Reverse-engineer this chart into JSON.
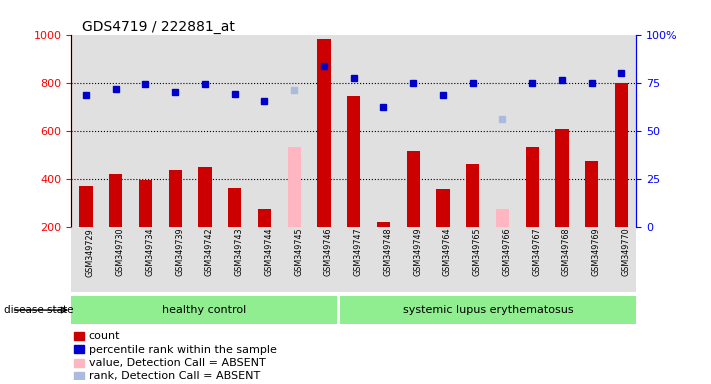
{
  "title": "GDS4719 / 222881_at",
  "samples": [
    "GSM349729",
    "GSM349730",
    "GSM349734",
    "GSM349739",
    "GSM349742",
    "GSM349743",
    "GSM349744",
    "GSM349745",
    "GSM349746",
    "GSM349747",
    "GSM349748",
    "GSM349749",
    "GSM349764",
    "GSM349765",
    "GSM349766",
    "GSM349767",
    "GSM349768",
    "GSM349769",
    "GSM349770"
  ],
  "count_values": [
    370,
    420,
    395,
    435,
    450,
    360,
    275,
    null,
    980,
    745,
    220,
    515,
    355,
    460,
    null,
    530,
    605,
    475,
    800
  ],
  "count_absent": [
    null,
    null,
    null,
    null,
    null,
    null,
    null,
    530,
    null,
    null,
    null,
    null,
    null,
    null,
    275,
    null,
    null,
    null,
    null
  ],
  "rank_values": [
    750,
    775,
    795,
    760,
    795,
    752,
    725,
    null,
    870,
    820,
    700,
    800,
    748,
    800,
    null,
    800,
    810,
    800,
    840
  ],
  "rank_absent": [
    null,
    null,
    null,
    null,
    null,
    null,
    null,
    770,
    null,
    null,
    null,
    null,
    null,
    null,
    650,
    null,
    null,
    null,
    null
  ],
  "group_labels": [
    "healthy control",
    "systemic lupus erythematosus"
  ],
  "healthy_count": 9,
  "sle_count": 10,
  "ylim_left": [
    200,
    1000
  ],
  "ylim_right": [
    0,
    100
  ],
  "yticks_left": [
    200,
    400,
    600,
    800,
    1000
  ],
  "yticks_right": [
    0,
    25,
    50,
    75,
    100
  ],
  "bar_color": "#CC0000",
  "bar_absent_color": "#FFB6C1",
  "dot_color": "#0000CC",
  "dot_absent_color": "#AABBDD",
  "group_bg_color": "#90EE90",
  "sample_bg_color": "#CCCCCC",
  "legend_items": [
    {
      "label": "count",
      "color": "#CC0000"
    },
    {
      "label": "percentile rank within the sample",
      "color": "#0000CC"
    },
    {
      "label": "value, Detection Call = ABSENT",
      "color": "#FFB6C1"
    },
    {
      "label": "rank, Detection Call = ABSENT",
      "color": "#AABBDD"
    }
  ]
}
